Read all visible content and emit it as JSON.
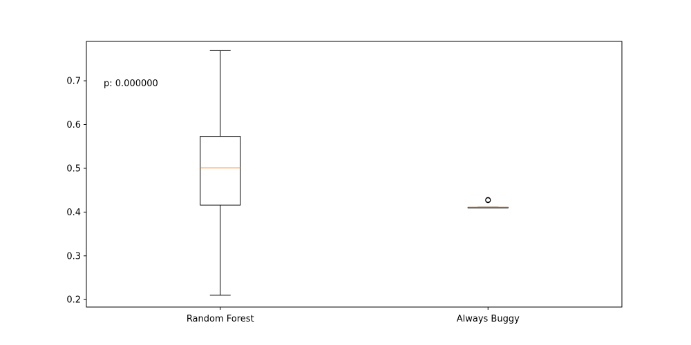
{
  "chart_data": {
    "type": "box",
    "title": "",
    "xlabel": "",
    "ylabel": "",
    "ylim": [
      0.183,
      0.79
    ],
    "yticks": [
      "0.2",
      "0.3",
      "0.4",
      "0.5",
      "0.6",
      "0.7"
    ],
    "categories": [
      "Random Forest",
      "Always Buggy"
    ],
    "boxes": [
      {
        "category": "Random Forest",
        "whisker_low": 0.21,
        "q1": 0.416,
        "median": 0.501,
        "q3": 0.573,
        "whisker_high": 0.769,
        "fliers": []
      },
      {
        "category": "Always Buggy",
        "whisker_low": 0.411,
        "q1": 0.411,
        "median": 0.411,
        "q3": 0.411,
        "whisker_high": 0.411,
        "fliers": [
          0.427,
          0.428
        ]
      }
    ],
    "annotation": "p: 0.000000",
    "colors": {
      "box": "#000000",
      "median": "#ff7f0e",
      "flier": "#000000",
      "background": "#ffffff"
    },
    "grid": false,
    "legend": "none"
  }
}
